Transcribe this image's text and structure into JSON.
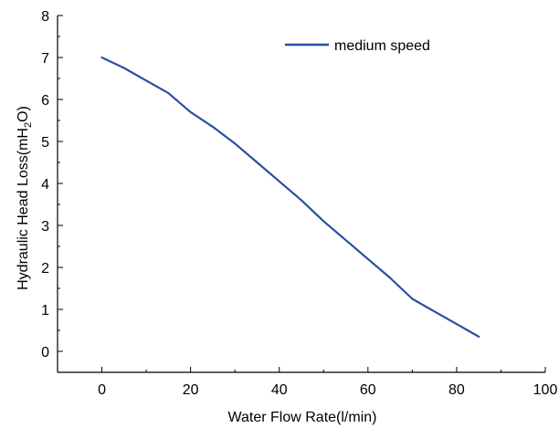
{
  "chart_data": {
    "type": "line",
    "title": "",
    "xlabel": "Water Flow Rate(l/min)",
    "ylabel_parts": [
      "Hydraulic Head Loss(mH",
      "2",
      "O)"
    ],
    "xlim": [
      -10,
      100
    ],
    "ylim": [
      -0.5,
      8
    ],
    "xticks": [
      0,
      20,
      40,
      60,
      80,
      100
    ],
    "yticks": [
      0,
      1,
      2,
      3,
      4,
      5,
      6,
      7,
      8
    ],
    "tick_labels_x": [
      "0",
      "20",
      "40",
      "60",
      "80",
      "100"
    ],
    "tick_labels_y": [
      "0",
      "1",
      "2",
      "3",
      "4",
      "5",
      "6",
      "7",
      "8"
    ],
    "grid": false,
    "legend_position": "top-right",
    "series": [
      {
        "name": "medium speed",
        "color": "#2b4ea2",
        "x": [
          0,
          5,
          10,
          15,
          20,
          25,
          30,
          35,
          40,
          45,
          50,
          55,
          60,
          65,
          70,
          75,
          80,
          85
        ],
        "y": [
          7.0,
          6.75,
          6.45,
          6.15,
          5.7,
          5.35,
          4.95,
          4.5,
          4.05,
          3.6,
          3.1,
          2.65,
          2.2,
          1.75,
          1.25,
          0.95,
          0.65,
          0.35
        ]
      }
    ]
  }
}
